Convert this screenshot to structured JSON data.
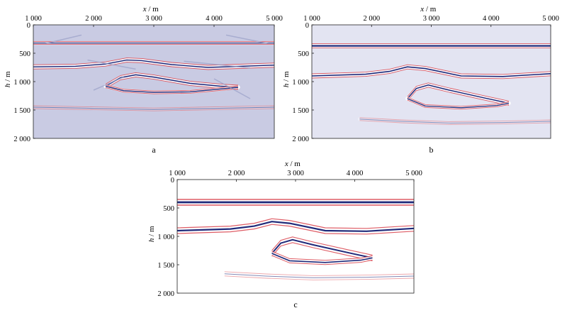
{
  "panels": [
    {
      "id": "a",
      "label": "a",
      "x_axis": {
        "label_var": "x",
        "label_unit": " / m",
        "ticks": [
          "1 000",
          "2 000",
          "3 000",
          "4 000",
          "5 000"
        ],
        "values": [
          1000,
          2000,
          3000,
          4000,
          5000
        ]
      },
      "y_axis": {
        "label_var": "h",
        "label_unit": " / m",
        "ticks": [
          "0",
          "500",
          "1 000",
          "1 500",
          "2 000"
        ],
        "values": [
          0,
          500,
          1000,
          1500,
          2000
        ]
      },
      "background": "#c9cbe3"
    },
    {
      "id": "b",
      "label": "b",
      "x_axis": {
        "label_var": "x",
        "label_unit": " / m",
        "ticks": [
          "1 000",
          "2 000",
          "3 000",
          "4 000",
          "5 000"
        ],
        "values": [
          1000,
          2000,
          3000,
          4000,
          5000
        ]
      },
      "y_axis": {
        "label_var": "h",
        "label_unit": " / m",
        "ticks": [
          "0",
          "500",
          "1 000",
          "1 500",
          "2 000"
        ],
        "values": [
          0,
          500,
          1000,
          1500,
          2000
        ]
      },
      "background": "#e3e4f2"
    },
    {
      "id": "c",
      "label": "c",
      "x_axis": {
        "label_var": "x",
        "label_unit": " / m",
        "ticks": [
          "1 000",
          "2 000",
          "3 000",
          "4 000",
          "5 000"
        ],
        "values": [
          1000,
          2000,
          3000,
          4000,
          5000
        ]
      },
      "y_axis": {
        "label_var": "h",
        "label_unit": " / m",
        "ticks": [
          "0",
          "500",
          "1 000",
          "1 500",
          "2 000"
        ],
        "values": [
          0,
          500,
          1000,
          1500,
          2000
        ]
      },
      "background": "#ffffff"
    }
  ],
  "colors": {
    "blue": "#1f2a7a",
    "red": "#d8404a",
    "ghost": "#9aa0c8"
  }
}
